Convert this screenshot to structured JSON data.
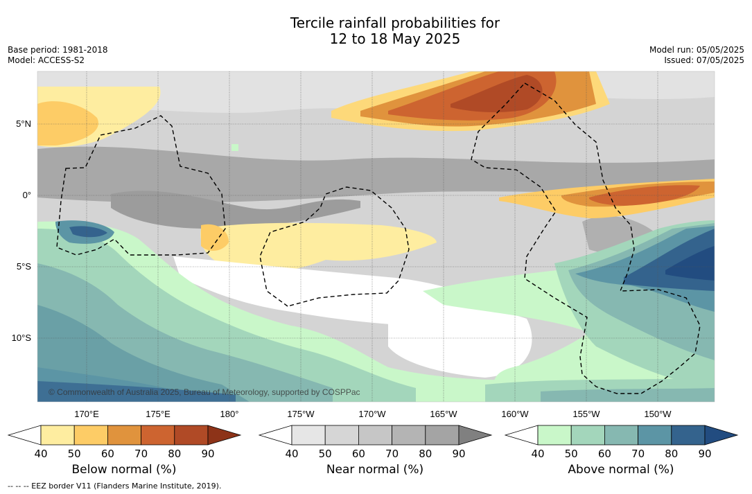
{
  "title": {
    "line1": "Tercile rainfall probabilities for",
    "line2": "12 to 18 May 2025"
  },
  "meta_left": {
    "base_period": "Base period: 1981-2018",
    "model": "Model: ACCESS-S2"
  },
  "meta_right": {
    "model_run": "Model run: 05/05/2025",
    "issued": "Issued: 07/05/2025"
  },
  "map": {
    "lat_labels": [
      "5°N",
      "0°",
      "5°S",
      "10°S"
    ],
    "lon_labels": [
      "170°E",
      "175°E",
      "180°",
      "175°W",
      "170°W",
      "165°W",
      "160°W",
      "155°W",
      "150°W"
    ],
    "credit": "© Commonwealth of Australia 2025, Bureau of Meteorology, supported by COSPPac"
  },
  "colorbars": [
    {
      "title": "Below normal (%)",
      "ticks": [
        "40",
        "50",
        "60",
        "70",
        "80",
        "90"
      ],
      "colors": [
        "#ffffff",
        "#feeda0",
        "#fdcc66",
        "#e0933d",
        "#cd6430",
        "#b04a26",
        "#8d3318"
      ]
    },
    {
      "title": "Near normal (%)",
      "ticks": [
        "40",
        "50",
        "60",
        "70",
        "80",
        "90"
      ],
      "colors": [
        "#ffffff",
        "#e6e6e6",
        "#d6d6d6",
        "#c6c6c6",
        "#b4b4b4",
        "#a4a4a4",
        "#808080"
      ]
    },
    {
      "title": "Above normal (%)",
      "ticks": [
        "40",
        "50",
        "60",
        "70",
        "80",
        "90"
      ],
      "colors": [
        "#ffffff",
        "#c9f7c9",
        "#a3d6bb",
        "#86b8b1",
        "#5c95a5",
        "#34638d",
        "#224c80"
      ]
    }
  ],
  "footnote": "-- -- -- EEZ border V11 (Flanders Marine Institute, 2019)."
}
